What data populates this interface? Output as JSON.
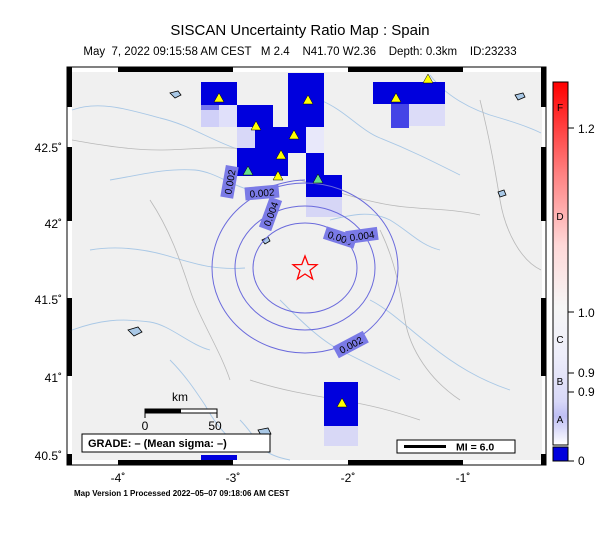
{
  "header": {
    "title": "SISCAN Uncertainty Ratio Map : Spain",
    "subtitle": "May  7, 2022 09:15:58 AM CEST   M 2.4    N41.70 W2.36    Depth: 0.3km    ID:23233"
  },
  "axes": {
    "lon_ticks": [
      "-4˚",
      "-3˚",
      "-2˚",
      "-1˚"
    ],
    "lat_ticks": [
      "42.5˚",
      "42˚",
      "41.5˚",
      "41˚",
      "40.5˚"
    ]
  },
  "map": {
    "epicenter": {
      "lat": 41.7,
      "lon": -2.36
    },
    "contour_labels": [
      "0.002",
      "0.002",
      "0.004",
      "0.006",
      "0.004",
      "0.002"
    ],
    "colors": {
      "land": "#f0f0f0",
      "water": "#a9c8e6",
      "contour": "#6a6adc",
      "station": "#ffff00"
    }
  },
  "scale_bar": {
    "unit": "km",
    "ticks": [
      "0",
      "50"
    ]
  },
  "grade_box": {
    "text": "GRADE: – (Mean sigma: –)"
  },
  "mi_legend": {
    "text": "MI = 6.0"
  },
  "colorbar": {
    "ticks": [
      "1.2",
      "1.0",
      "0.9",
      "0.9",
      "0"
    ],
    "grades": [
      "F",
      "D",
      "C",
      "B",
      "A"
    ]
  },
  "footer": {
    "text": "Map Version 1 Processed 2022–05–07 09:18:06 AM CEST"
  }
}
